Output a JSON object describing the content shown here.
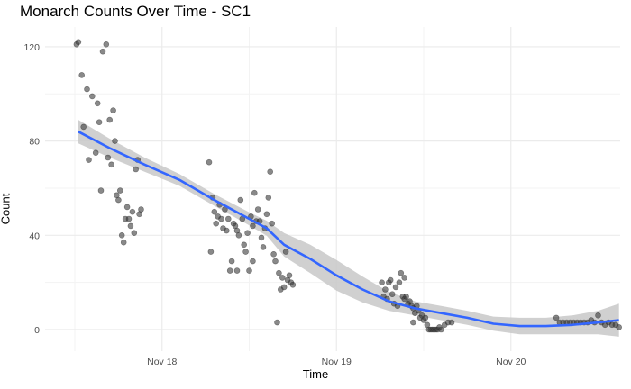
{
  "chart_data": {
    "type": "scatter",
    "title": "Monarch Counts Over Time - SC1",
    "xlabel": "Time",
    "ylabel": "Count",
    "x_unit": "days (day 0 = Nov 17 00:00)",
    "xlim": [
      17.5,
      20.68
    ],
    "ylim": [
      -6,
      127
    ],
    "x_ticks": [
      {
        "value": 1,
        "label": "Nov 18"
      },
      {
        "value": 2,
        "label": "Nov 19"
      },
      {
        "value": 3,
        "label": "Nov 20"
      }
    ],
    "y_ticks": [
      0,
      40,
      80,
      120
    ],
    "grid": true,
    "points": [
      [
        0.51,
        121
      ],
      [
        0.52,
        122
      ],
      [
        0.54,
        108
      ],
      [
        0.55,
        86
      ],
      [
        0.57,
        102
      ],
      [
        0.58,
        72
      ],
      [
        0.6,
        99
      ],
      [
        0.62,
        75
      ],
      [
        0.63,
        96
      ],
      [
        0.64,
        88
      ],
      [
        0.66,
        118
      ],
      [
        0.68,
        121
      ],
      [
        0.69,
        73
      ],
      [
        0.7,
        89
      ],
      [
        0.72,
        93
      ],
      [
        0.73,
        80
      ],
      [
        0.74,
        57
      ],
      [
        0.75,
        55
      ],
      [
        0.76,
        59
      ],
      [
        0.77,
        40
      ],
      [
        0.78,
        37
      ],
      [
        0.79,
        47
      ],
      [
        0.8,
        52
      ],
      [
        0.81,
        47
      ],
      [
        0.82,
        44
      ],
      [
        0.83,
        50
      ],
      [
        0.84,
        41
      ],
      [
        0.85,
        68
      ],
      [
        0.86,
        72
      ],
      [
        0.87,
        49
      ],
      [
        0.88,
        51
      ],
      [
        0.65,
        59
      ],
      [
        0.71,
        70
      ],
      [
        1.27,
        71
      ],
      [
        1.28,
        33
      ],
      [
        1.29,
        56
      ],
      [
        1.3,
        50
      ],
      [
        1.31,
        45
      ],
      [
        1.32,
        48
      ],
      [
        1.33,
        53
      ],
      [
        1.34,
        47
      ],
      [
        1.35,
        43
      ],
      [
        1.36,
        51
      ],
      [
        1.37,
        42
      ],
      [
        1.38,
        47
      ],
      [
        1.39,
        25
      ],
      [
        1.4,
        29
      ],
      [
        1.41,
        45
      ],
      [
        1.42,
        44
      ],
      [
        1.43,
        42
      ],
      [
        1.44,
        40
      ],
      [
        1.45,
        55
      ],
      [
        1.46,
        47
      ],
      [
        1.47,
        36
      ],
      [
        1.48,
        33
      ],
      [
        1.49,
        41
      ],
      [
        1.5,
        25
      ],
      [
        1.51,
        48
      ],
      [
        1.52,
        44
      ],
      [
        1.53,
        58
      ],
      [
        1.54,
        46
      ],
      [
        1.55,
        51
      ],
      [
        1.56,
        46
      ],
      [
        1.57,
        39
      ],
      [
        1.58,
        35
      ],
      [
        1.59,
        43
      ],
      [
        1.6,
        49
      ],
      [
        1.61,
        56
      ],
      [
        1.62,
        67
      ],
      [
        1.63,
        45
      ],
      [
        1.64,
        32
      ],
      [
        1.65,
        29
      ],
      [
        1.66,
        3
      ],
      [
        1.67,
        24
      ],
      [
        1.68,
        17
      ],
      [
        1.69,
        22
      ],
      [
        1.7,
        18
      ],
      [
        1.71,
        33
      ],
      [
        1.72,
        21
      ],
      [
        1.73,
        23
      ],
      [
        1.74,
        20
      ],
      [
        1.75,
        19
      ],
      [
        1.52,
        29
      ],
      [
        1.43,
        25
      ],
      [
        2.26,
        20
      ],
      [
        2.27,
        14
      ],
      [
        2.28,
        17
      ],
      [
        2.29,
        13
      ],
      [
        2.3,
        20
      ],
      [
        2.31,
        21
      ],
      [
        2.32,
        15
      ],
      [
        2.33,
        11
      ],
      [
        2.34,
        18
      ],
      [
        2.35,
        10
      ],
      [
        2.36,
        20
      ],
      [
        2.37,
        24
      ],
      [
        2.38,
        14
      ],
      [
        2.39,
        13
      ],
      [
        2.4,
        14
      ],
      [
        2.41,
        11
      ],
      [
        2.42,
        12
      ],
      [
        2.43,
        10
      ],
      [
        2.44,
        9
      ],
      [
        2.45,
        7
      ],
      [
        2.46,
        10
      ],
      [
        2.47,
        8
      ],
      [
        2.48,
        5
      ],
      [
        2.49,
        6
      ],
      [
        2.5,
        4
      ],
      [
        2.51,
        5
      ],
      [
        2.52,
        2
      ],
      [
        2.53,
        0
      ],
      [
        2.54,
        0
      ],
      [
        2.55,
        0
      ],
      [
        2.56,
        0
      ],
      [
        2.57,
        0
      ],
      [
        2.58,
        0
      ],
      [
        2.59,
        1
      ],
      [
        2.6,
        0
      ],
      [
        2.62,
        2
      ],
      [
        2.64,
        3
      ],
      [
        2.66,
        3
      ],
      [
        2.39,
        22
      ],
      [
        2.44,
        3
      ],
      [
        3.26,
        5
      ],
      [
        3.28,
        3
      ],
      [
        3.3,
        3
      ],
      [
        3.32,
        3
      ],
      [
        3.34,
        3
      ],
      [
        3.36,
        3
      ],
      [
        3.38,
        3
      ],
      [
        3.4,
        3
      ],
      [
        3.42,
        3
      ],
      [
        3.44,
        3
      ],
      [
        3.46,
        4
      ],
      [
        3.48,
        3
      ],
      [
        3.5,
        6
      ],
      [
        3.52,
        3
      ],
      [
        3.54,
        2
      ],
      [
        3.56,
        3
      ],
      [
        3.58,
        2
      ],
      [
        3.6,
        2
      ],
      [
        3.62,
        1
      ]
    ],
    "trend": [
      [
        0.52,
        84
      ],
      [
        0.7,
        77
      ],
      [
        0.9,
        70
      ],
      [
        1.1,
        63.5
      ],
      [
        1.3,
        55
      ],
      [
        1.5,
        47
      ],
      [
        1.6,
        43
      ],
      [
        1.7,
        36
      ],
      [
        1.85,
        30
      ],
      [
        2.0,
        23
      ],
      [
        2.15,
        17
      ],
      [
        2.3,
        12
      ],
      [
        2.45,
        9
      ],
      [
        2.6,
        7
      ],
      [
        2.75,
        5
      ],
      [
        2.9,
        2.5
      ],
      [
        3.05,
        1.5
      ],
      [
        3.2,
        1.5
      ],
      [
        3.35,
        2
      ],
      [
        3.5,
        3
      ],
      [
        3.62,
        4
      ]
    ],
    "ci_halfwidth": [
      5,
      4,
      3,
      2.5,
      2.5,
      2.8,
      3.2,
      5,
      6,
      6.5,
      5.5,
      4,
      3,
      3,
      3,
      3,
      3.5,
      3.5,
      4,
      5,
      7
    ],
    "colors": {
      "points": "#3a3a3a",
      "trend": "#3366FF",
      "band": "#c8c8c8",
      "grid": "#ebebeb"
    }
  }
}
